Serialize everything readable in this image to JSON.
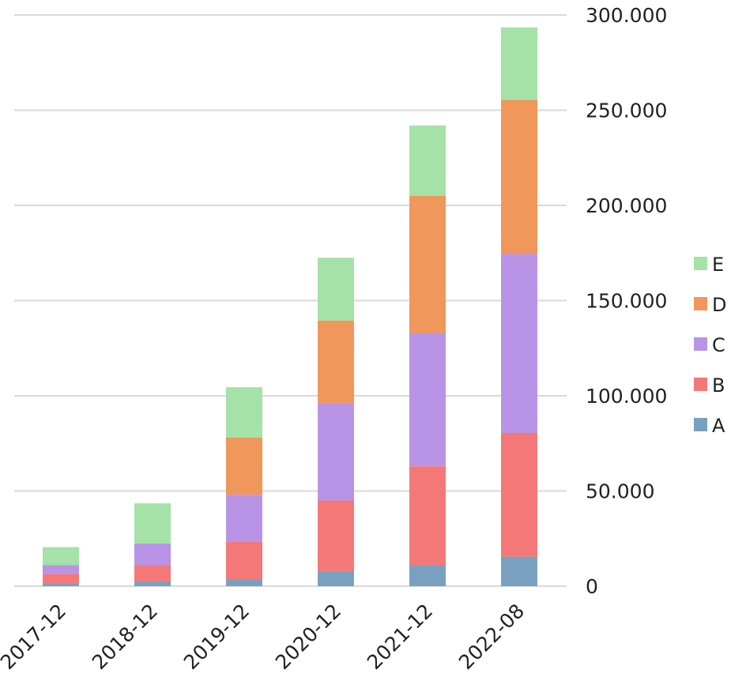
{
  "chart_data": {
    "type": "bar",
    "stacked": true,
    "title": "",
    "xlabel": "",
    "ylabel": "",
    "categories": [
      "2017-12",
      "2018-12",
      "2019-12",
      "2020-12",
      "2021-12",
      "2022-08"
    ],
    "series": [
      {
        "name": "A",
        "color": "#7aa0c0",
        "values": [
          1500,
          2500,
          3500,
          7500,
          11000,
          15500
        ]
      },
      {
        "name": "B",
        "color": "#f47878",
        "values": [
          5000,
          8500,
          20000,
          37500,
          52000,
          65000
        ]
      },
      {
        "name": "C",
        "color": "#b994e6",
        "values": [
          4500,
          11500,
          24500,
          51000,
          70000,
          94000
        ]
      },
      {
        "name": "D",
        "color": "#f0975c",
        "values": [
          0,
          0,
          30000,
          43500,
          72000,
          81000
        ]
      },
      {
        "name": "E",
        "color": "#a4e2a8",
        "values": [
          9500,
          21000,
          26500,
          33000,
          37000,
          38000
        ]
      }
    ],
    "ylim": [
      0,
      300000
    ],
    "yticks": [
      0,
      50000,
      100000,
      150000,
      200000,
      250000,
      300000
    ],
    "ytick_labels": [
      "0",
      "50.000",
      "100.000",
      "150.000",
      "200.000",
      "250.000",
      "300.000"
    ],
    "y_axis_position": "right",
    "grid": true,
    "legend_position": "right",
    "legend_order": [
      "E",
      "D",
      "C",
      "B",
      "A"
    ]
  }
}
